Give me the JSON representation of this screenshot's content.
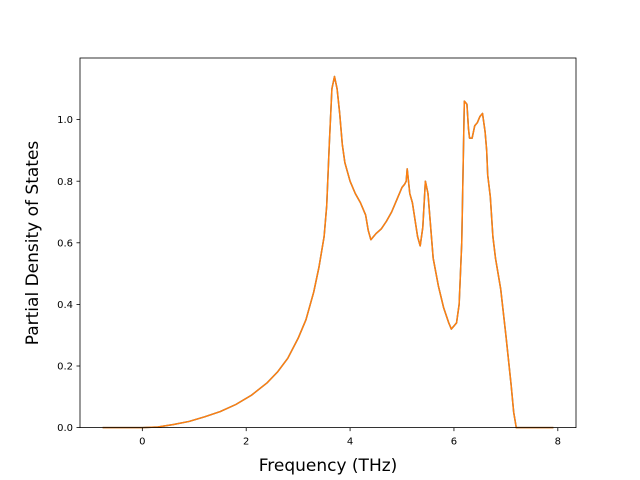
{
  "chart_data": {
    "type": "line",
    "title": "",
    "xlabel": "Frequency (THz)",
    "ylabel": "Partial Density of States",
    "xlim": [
      -1.2,
      8.35
    ],
    "ylim": [
      0.0,
      1.2
    ],
    "xticks": [
      0,
      2,
      4,
      6,
      8
    ],
    "xtick_labels": [
      "0",
      "2",
      "4",
      "6",
      "8"
    ],
    "yticks": [
      0.0,
      0.2,
      0.4,
      0.6,
      0.8,
      1.0
    ],
    "ytick_labels": [
      "0.0",
      "0.2",
      "0.4",
      "0.6",
      "0.8",
      "1.0"
    ],
    "grid": false,
    "legend": "none",
    "series": [
      {
        "color": "#1f77b4",
        "x": [
          -0.75,
          -0.4,
          0.0,
          0.3,
          0.6,
          0.9,
          1.2,
          1.5,
          1.8,
          2.1,
          2.4,
          2.6,
          2.8,
          3.0,
          3.15,
          3.3,
          3.4,
          3.5,
          3.55,
          3.6,
          3.65,
          3.7,
          3.75,
          3.8,
          3.85,
          3.9,
          4.0,
          4.1,
          4.2,
          4.25,
          4.3,
          4.35,
          4.4,
          4.5,
          4.6,
          4.7,
          4.8,
          4.9,
          5.0,
          5.05,
          5.08,
          5.1,
          5.15,
          5.2,
          5.3,
          5.35,
          5.4,
          5.45,
          5.5,
          5.6,
          5.7,
          5.8,
          5.9,
          5.95,
          6.0,
          6.05,
          6.1,
          6.15,
          6.2,
          6.25,
          6.28,
          6.3,
          6.35,
          6.4,
          6.45,
          6.5,
          6.55,
          6.6,
          6.63,
          6.65,
          6.7,
          6.75,
          6.8,
          6.9,
          7.0,
          7.05,
          7.1,
          7.15,
          7.2,
          7.23,
          7.3,
          7.5,
          7.7,
          7.9
        ],
        "y": [
          0.0,
          0.0,
          0.0,
          0.002,
          0.01,
          0.02,
          0.035,
          0.052,
          0.075,
          0.105,
          0.145,
          0.18,
          0.225,
          0.29,
          0.35,
          0.44,
          0.52,
          0.62,
          0.72,
          0.92,
          1.1,
          1.14,
          1.1,
          1.02,
          0.92,
          0.86,
          0.8,
          0.76,
          0.73,
          0.71,
          0.69,
          0.64,
          0.61,
          0.63,
          0.645,
          0.67,
          0.7,
          0.74,
          0.78,
          0.79,
          0.8,
          0.84,
          0.76,
          0.73,
          0.62,
          0.59,
          0.65,
          0.8,
          0.76,
          0.55,
          0.46,
          0.39,
          0.34,
          0.32,
          0.33,
          0.34,
          0.4,
          0.6,
          1.06,
          1.05,
          0.97,
          0.94,
          0.94,
          0.98,
          0.99,
          1.01,
          1.02,
          0.96,
          0.9,
          0.82,
          0.75,
          0.62,
          0.55,
          0.45,
          0.3,
          0.22,
          0.14,
          0.05,
          0.0,
          0.0,
          0.0,
          0.0,
          0.0,
          0.0
        ]
      },
      {
        "color": "#ff7f0e",
        "x": [
          -0.75,
          -0.4,
          0.0,
          0.3,
          0.6,
          0.9,
          1.2,
          1.5,
          1.8,
          2.1,
          2.4,
          2.6,
          2.8,
          3.0,
          3.15,
          3.3,
          3.4,
          3.5,
          3.55,
          3.6,
          3.65,
          3.7,
          3.75,
          3.8,
          3.85,
          3.9,
          4.0,
          4.1,
          4.2,
          4.25,
          4.3,
          4.35,
          4.4,
          4.5,
          4.6,
          4.7,
          4.8,
          4.9,
          5.0,
          5.05,
          5.08,
          5.1,
          5.15,
          5.2,
          5.3,
          5.35,
          5.4,
          5.45,
          5.5,
          5.6,
          5.7,
          5.8,
          5.9,
          5.95,
          6.0,
          6.05,
          6.1,
          6.15,
          6.2,
          6.25,
          6.28,
          6.3,
          6.35,
          6.4,
          6.45,
          6.5,
          6.55,
          6.6,
          6.63,
          6.65,
          6.7,
          6.75,
          6.8,
          6.9,
          7.0,
          7.05,
          7.1,
          7.15,
          7.2,
          7.23,
          7.3,
          7.5,
          7.7,
          7.9
        ],
        "y": [
          0.0,
          0.0,
          0.0,
          0.002,
          0.01,
          0.02,
          0.035,
          0.052,
          0.075,
          0.105,
          0.145,
          0.18,
          0.225,
          0.29,
          0.35,
          0.44,
          0.52,
          0.62,
          0.72,
          0.92,
          1.1,
          1.14,
          1.1,
          1.02,
          0.92,
          0.86,
          0.8,
          0.76,
          0.73,
          0.71,
          0.69,
          0.64,
          0.61,
          0.63,
          0.645,
          0.67,
          0.7,
          0.74,
          0.78,
          0.79,
          0.8,
          0.84,
          0.76,
          0.73,
          0.62,
          0.59,
          0.65,
          0.8,
          0.76,
          0.55,
          0.46,
          0.39,
          0.34,
          0.32,
          0.33,
          0.34,
          0.4,
          0.6,
          1.06,
          1.05,
          0.97,
          0.94,
          0.94,
          0.98,
          0.99,
          1.01,
          1.02,
          0.96,
          0.9,
          0.82,
          0.75,
          0.62,
          0.55,
          0.45,
          0.3,
          0.22,
          0.14,
          0.05,
          0.0,
          0.0,
          0.0,
          0.0,
          0.0,
          0.0
        ]
      }
    ]
  }
}
